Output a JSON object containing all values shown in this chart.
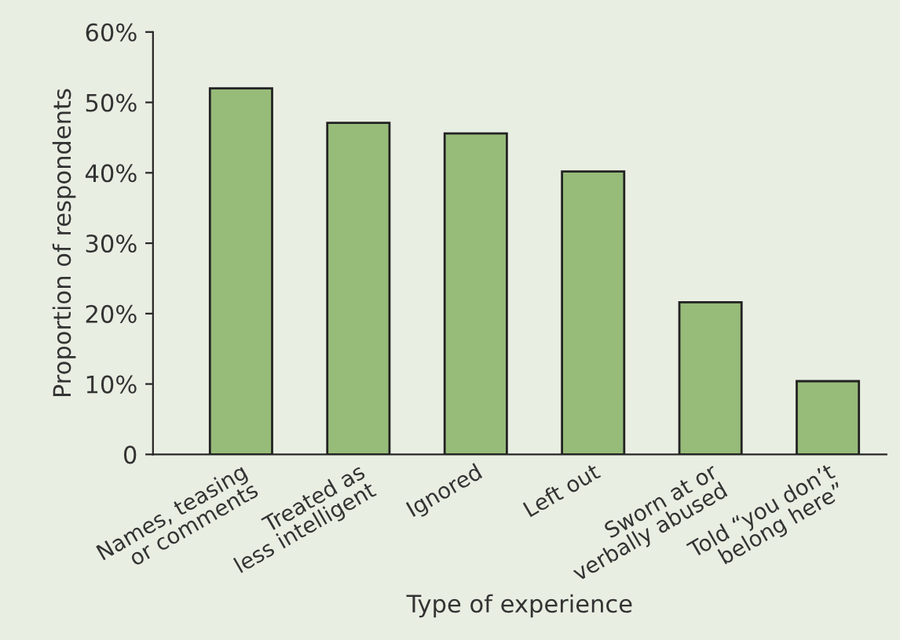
{
  "chart_data": {
    "type": "bar",
    "xlabel": "Type of experience",
    "ylabel": "Proportion of respondents",
    "categories": [
      "Names, teasing\nor comments",
      "Treated as\nless intelligent",
      "Ignored",
      "Left out",
      "Sworn at or\nverbally abused",
      "Told “you don’t\nbelong here”"
    ],
    "values": [
      52.0,
      47.1,
      45.6,
      40.2,
      21.6,
      10.4
    ],
    "color": "#97bb79",
    "ylim": [
      0,
      60
    ],
    "yticks": [
      {
        "value": 0,
        "label": "0"
      },
      {
        "value": 10,
        "label": "10%"
      },
      {
        "value": 20,
        "label": "20%"
      },
      {
        "value": 30,
        "label": "30%"
      },
      {
        "value": 40,
        "label": "40%"
      },
      {
        "value": 50,
        "label": "50%"
      },
      {
        "value": 60,
        "label": "60%"
      }
    ],
    "grid": false
  }
}
